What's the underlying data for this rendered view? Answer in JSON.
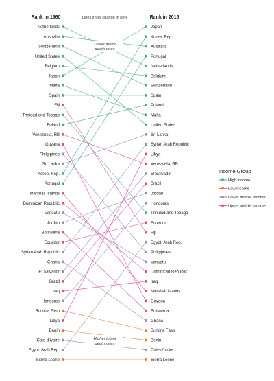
{
  "chart_data": {
    "type": "slope",
    "header_left": "Rank in 1960",
    "header_right": "Rank in 2015",
    "header_mid": "Lines show change in rank",
    "annotation_top": [
      "Lower infant",
      "death rates"
    ],
    "annotation_bottom": [
      "Higher infant",
      "death rates"
    ],
    "legend_title": "Income Group",
    "groups": [
      {
        "key": "high",
        "label": "High income",
        "color": "#4dab8a"
      },
      {
        "key": "low",
        "label": "Low income",
        "color": "#e07b39"
      },
      {
        "key": "lower_middle",
        "label": "Lower middle income",
        "color": "#8f8fc4"
      },
      {
        "key": "upper_middle",
        "label": "Upper middle income",
        "color": "#e0489a"
      }
    ],
    "rank_1960": [
      "Netherlands",
      "Australia",
      "Switzerland",
      "United States",
      "Belgium",
      "Japan",
      "Malta",
      "Spain",
      "Fiji",
      "Trinidad and Tobago",
      "Poland",
      "Venezuela, RB",
      "Guyana",
      "Philippines",
      "Sri Lanka",
      "Korea, Rep.",
      "Portugal",
      "Marshall Islands",
      "Dominican Republic",
      "Vanuatu",
      "Jordan",
      "Botswana",
      "Ecuador",
      "Syrian Arab Republic",
      "Ghana",
      "El Salvador",
      "Brazil",
      "Iraq",
      "Honduras",
      "Burkina Faso",
      "Libya",
      "Benin",
      "Cote d'Ivoire",
      "Egypt, Arab Rep.",
      "Sierra Leone"
    ],
    "rank_2015": [
      "Japan",
      "Korea, Rep.",
      "Australia",
      "Portugal",
      "Netherlands",
      "Belgium",
      "Switzerland",
      "Spain",
      "Poland",
      "Malta",
      "United States",
      "Sri Lanka",
      "Syrian Arab Republic",
      "Libya",
      "Venezuela, RB",
      "El Salvador",
      "Brazil",
      "Jordan",
      "Honduras",
      "Trinidad and Tobago",
      "Ecuador",
      "Fiji",
      "Egypt, Arab Rep.",
      "Philippines",
      "Vanuatu",
      "Dominican Republic",
      "Iraq",
      "Marshall Islands",
      "Guyana",
      "Botswana",
      "Ghana",
      "Burkina Faso",
      "Benin",
      "Cote d'Ivoire",
      "Sierra Leone"
    ],
    "country_group": {
      "Netherlands": "high",
      "Australia": "high",
      "Switzerland": "high",
      "United States": "high",
      "Belgium": "high",
      "Japan": "high",
      "Malta": "high",
      "Spain": "high",
      "Fiji": "upper_middle",
      "Trinidad and Tobago": "high",
      "Poland": "high",
      "Venezuela, RB": "upper_middle",
      "Guyana": "upper_middle",
      "Philippines": "lower_middle",
      "Sri Lanka": "lower_middle",
      "Korea, Rep.": "high",
      "Portugal": "high",
      "Marshall Islands": "upper_middle",
      "Dominican Republic": "upper_middle",
      "Vanuatu": "lower_middle",
      "Jordan": "lower_middle",
      "Botswana": "upper_middle",
      "Ecuador": "upper_middle",
      "Syrian Arab Republic": "lower_middle",
      "Ghana": "lower_middle",
      "El Salvador": "lower_middle",
      "Brazil": "upper_middle",
      "Iraq": "upper_middle",
      "Honduras": "lower_middle",
      "Burkina Faso": "low",
      "Libya": "upper_middle",
      "Benin": "low",
      "Cote d'Ivoire": "lower_middle",
      "Egypt, Arab Rep.": "lower_middle",
      "Sierra Leone": "low"
    }
  }
}
